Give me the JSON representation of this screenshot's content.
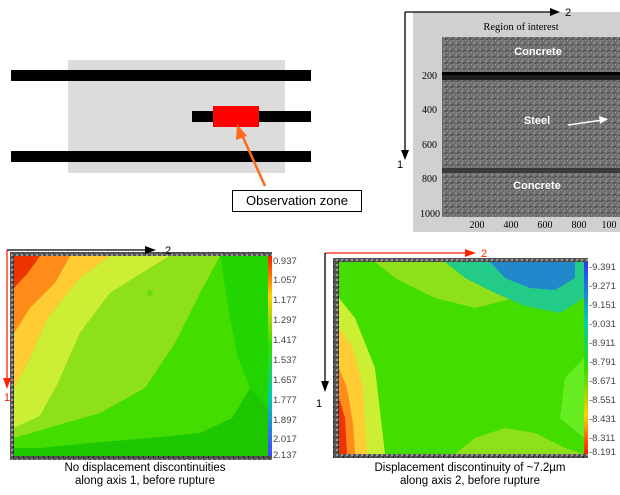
{
  "schematic": {
    "observation_zone_label": "Observation zone",
    "colors": {
      "bar": "#000000",
      "block": "#dcdcdc",
      "zone": "#ff0000",
      "arrow": "#ff6a1a"
    }
  },
  "micrograph": {
    "title": "Region of interest",
    "axis1_label": "1",
    "axis2_label": "2",
    "regions": {
      "concrete_top": "Concrete",
      "steel": "Steel",
      "concrete_bottom": "Concrete"
    },
    "y_ticks": [
      "200",
      "400",
      "600",
      "800",
      "1000"
    ],
    "x_ticks": [
      "200",
      "400",
      "600",
      "800",
      "100"
    ]
  },
  "map_left": {
    "axis1_label": "1",
    "axis2_label": "2",
    "scale": [
      "0.937",
      "1.057",
      "1.177",
      "1.297",
      "1.417",
      "1.537",
      "1.657",
      "1.777",
      "1.897",
      "2.017",
      "2.137"
    ],
    "caption_line1": "No displacement discontinuities",
    "caption_line2": "along axis 1, before rupture"
  },
  "map_right": {
    "axis1_label": "1",
    "axis2_label": "2",
    "scale": [
      "-9.391",
      "-9.271",
      "-9.151",
      "-9.031",
      "-8.911",
      "-8.791",
      "-8.671",
      "-8.551",
      "-8.431",
      "-8.311",
      "-8.191"
    ],
    "caption_line1": "Displacement discontinuity of ~7.2µm",
    "caption_line2": "along axis 2, before rupture"
  }
}
